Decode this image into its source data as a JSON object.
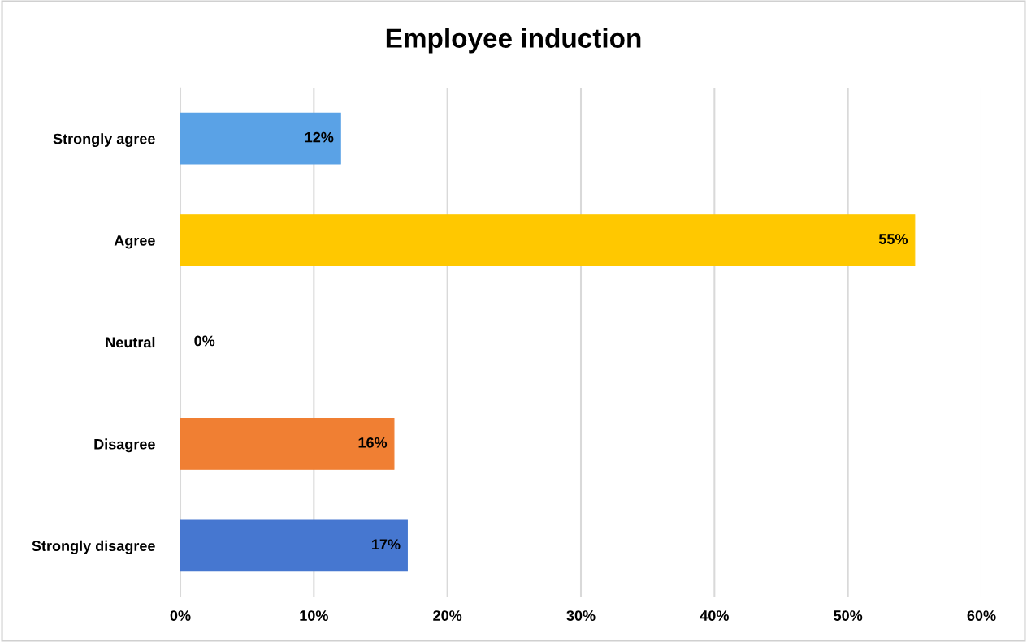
{
  "chart_data": {
    "type": "bar",
    "orientation": "horizontal",
    "title": "Employee induction",
    "categories": [
      "Strongly agree",
      "Agree",
      "Neutral",
      "Disagree",
      "Strongly disagree"
    ],
    "values": [
      12,
      55,
      0,
      16,
      17
    ],
    "colors": [
      "#5aa2e6",
      "#ffc800",
      "#d9d9d9",
      "#f07f33",
      "#4677d0"
    ],
    "value_labels": [
      "12%",
      "55%",
      "0%",
      "16%",
      "17%"
    ],
    "xlim": [
      0,
      60
    ],
    "xticks": [
      {
        "value": 0,
        "label": "0%"
      },
      {
        "value": 10,
        "label": "10%"
      },
      {
        "value": 20,
        "label": "20%"
      },
      {
        "value": 30,
        "label": "30%"
      },
      {
        "value": 40,
        "label": "40%"
      },
      {
        "value": 50,
        "label": "50%"
      },
      {
        "value": 60,
        "label": "60%"
      }
    ],
    "grid": "x",
    "legend": false
  }
}
